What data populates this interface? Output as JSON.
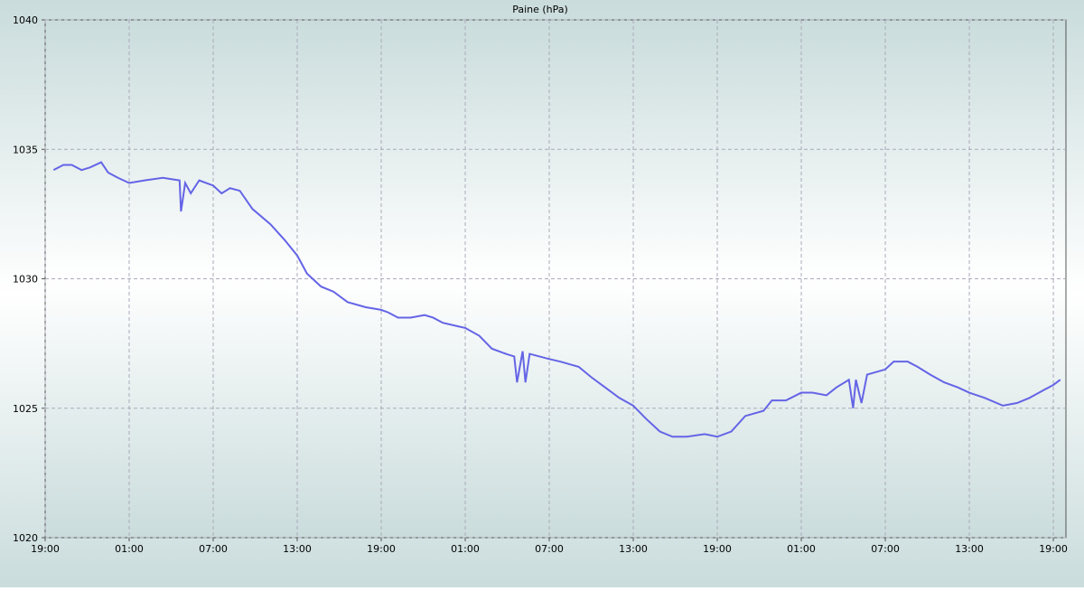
{
  "chart_data": {
    "type": "line",
    "title": "Paine (hPa)",
    "x": [
      0.6,
      1.3,
      1.9,
      2.6,
      3.2,
      4.0,
      4.5,
      5.2,
      6,
      7.1,
      8.4,
      9.6,
      9.7,
      10.0,
      10.4,
      11.0,
      12,
      12.6,
      13.2,
      13.9,
      14.8,
      16.1,
      17.1,
      18,
      18.7,
      19.7,
      20.6,
      21.6,
      22.9,
      24,
      24.5,
      25.2,
      26.1,
      27.1,
      27.7,
      28.4,
      30,
      31,
      31.9,
      32.9,
      33.5,
      33.7,
      34.1,
      34.3,
      34.6,
      36,
      36.8,
      38.1,
      39,
      40,
      41,
      42,
      42.9,
      43.9,
      44.8,
      45.8,
      47.1,
      48,
      49,
      50,
      51.3,
      51.9,
      52.9,
      54,
      54.8,
      55.8,
      56.5,
      57.4,
      57.7,
      57.9,
      58.3,
      58.7,
      60,
      60.6,
      61.6,
      62.3,
      63.2,
      64.2,
      65.2,
      66,
      67.1,
      68.4,
      69.4,
      70.3,
      71.3,
      72,
      72.5
    ],
    "series": [
      {
        "color": "#6464e6",
        "values": [
          1034.2,
          1034.4,
          1034.4,
          1034.2,
          1034.3,
          1034.5,
          1034.1,
          1033.9,
          1033.7,
          1033.8,
          1033.9,
          1033.8,
          1032.6,
          1033.7,
          1033.3,
          1033.8,
          1033.6,
          1033.3,
          1033.5,
          1033.4,
          1032.7,
          1032.1,
          1031.5,
          1030.9,
          1030.2,
          1029.7,
          1029.5,
          1029.1,
          1028.9,
          1028.8,
          1028.7,
          1028.5,
          1028.5,
          1028.6,
          1028.5,
          1028.3,
          1028.1,
          1027.8,
          1027.3,
          1027.1,
          1027.0,
          1026.0,
          1027.2,
          1026.0,
          1027.1,
          1026.9,
          1026.8,
          1026.6,
          1026.2,
          1025.8,
          1025.4,
          1025.1,
          1024.6,
          1024.1,
          1023.9,
          1023.9,
          1024.0,
          1023.9,
          1024.1,
          1024.7,
          1024.9,
          1025.3,
          1025.3,
          1025.6,
          1025.6,
          1025.5,
          1025.8,
          1026.1,
          1025.0,
          1026.1,
          1025.2,
          1026.3,
          1026.5,
          1026.8,
          1026.8,
          1026.6,
          1026.3,
          1026.0,
          1025.8,
          1025.6,
          1025.4,
          1025.1,
          1025.2,
          1025.4,
          1025.7,
          1025.9,
          1026.1
        ]
      }
    ],
    "xlim": [
      0,
      72.9
    ],
    "xticks": [
      {
        "value": 0,
        "label": "19:00"
      },
      {
        "value": 6,
        "label": "01:00"
      },
      {
        "value": 12,
        "label": "07:00"
      },
      {
        "value": 18,
        "label": "13:00"
      },
      {
        "value": 24,
        "label": "19:00"
      },
      {
        "value": 30,
        "label": "01:00"
      },
      {
        "value": 36,
        "label": "07:00"
      },
      {
        "value": 42,
        "label": "13:00"
      },
      {
        "value": 48,
        "label": "19:00"
      },
      {
        "value": 54,
        "label": "01:00"
      },
      {
        "value": 60,
        "label": "07:00"
      },
      {
        "value": 66,
        "label": "13:00"
      },
      {
        "value": 72,
        "label": "19:00"
      }
    ],
    "ylim": [
      1020,
      1040
    ],
    "yticks": [
      1020,
      1025,
      1030,
      1035,
      1040
    ],
    "grid": true
  }
}
